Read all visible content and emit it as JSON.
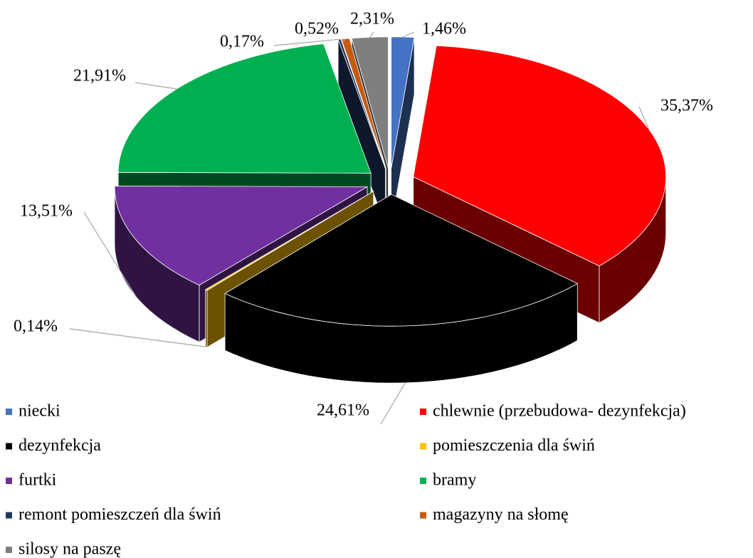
{
  "chart_data": {
    "type": "pie",
    "categories": [
      "niecki",
      "chlewnie (przebudowa- dezynfekcja)",
      "dezynfekcja",
      "pomieszczenia dla świń",
      "furtki",
      "bramy",
      "remont pomieszczeń dla świń",
      "magazyny na słomę",
      "silosy na paszę"
    ],
    "values": [
      1.46,
      35.37,
      24.61,
      0.14,
      13.51,
      21.91,
      0.17,
      0.52,
      2.31
    ],
    "value_labels": [
      "1,46%",
      "35,37%",
      "24,61%",
      "0,14%",
      "13,51%",
      "21,91%",
      "0,17%",
      "0,52%",
      "2,31%"
    ],
    "colors": [
      "#4472c4",
      "#ff0000",
      "#000000",
      "#ffc000",
      "#7030a0",
      "#00b050",
      "#1f3864",
      "#c55a11",
      "#7f7f7f"
    ],
    "legend": "bottom"
  }
}
